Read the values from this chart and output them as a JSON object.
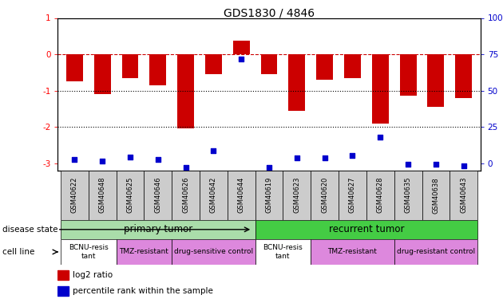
{
  "title": "GDS1830 / 4846",
  "samples": [
    "GSM40622",
    "GSM40648",
    "GSM40625",
    "GSM40646",
    "GSM40626",
    "GSM40642",
    "GSM40644",
    "GSM40619",
    "GSM40623",
    "GSM40620",
    "GSM40627",
    "GSM40628",
    "GSM40635",
    "GSM40638",
    "GSM40643"
  ],
  "log2_ratio": [
    -0.75,
    -1.1,
    -0.65,
    -0.85,
    -2.05,
    -0.55,
    0.38,
    -0.55,
    -1.55,
    -0.7,
    -0.65,
    -1.9,
    -1.15,
    -1.45,
    -1.2
  ],
  "percentile_rank": [
    7,
    6,
    9,
    7,
    2,
    13,
    73,
    2,
    8,
    8,
    10,
    22,
    4,
    4,
    3
  ],
  "bar_color": "#cc0000",
  "dot_color": "#0000cc",
  "dashed_line_color": "#cc0000",
  "dotted_line_color": "#000000",
  "ylim_left": [
    -3.2,
    1.0
  ],
  "left_yticks": [
    1,
    0,
    -1,
    -2,
    -3
  ],
  "right_yticks": [
    100,
    75,
    50,
    25,
    0
  ],
  "right_tick_positions": [
    1.0,
    0.0,
    -1.0,
    -2.0,
    -3.0
  ],
  "disease_state_groups": [
    {
      "label": "primary tumor",
      "start": 0,
      "end": 7,
      "color": "#aaddaa"
    },
    {
      "label": "recurrent tumor",
      "start": 7,
      "end": 15,
      "color": "#44cc44"
    }
  ],
  "cell_line_groups": [
    {
      "label": "BCNU-resis\ntant",
      "start": 0,
      "end": 2,
      "color": "#ffffff"
    },
    {
      "label": "TMZ-resistant",
      "start": 2,
      "end": 4,
      "color": "#dd88dd"
    },
    {
      "label": "drug-sensitive control",
      "start": 4,
      "end": 7,
      "color": "#dd88dd"
    },
    {
      "label": "BCNU-resis\ntant",
      "start": 7,
      "end": 9,
      "color": "#ffffff"
    },
    {
      "label": "TMZ-resistant",
      "start": 9,
      "end": 12,
      "color": "#dd88dd"
    },
    {
      "label": "drug-resistant control",
      "start": 12,
      "end": 15,
      "color": "#dd88dd"
    }
  ],
  "legend_items": [
    {
      "label": "log2 ratio",
      "color": "#cc0000"
    },
    {
      "label": "percentile rank within the sample",
      "color": "#0000cc"
    }
  ],
  "disease_label": "disease state",
  "cell_line_label": "cell line",
  "background_color": "#ffffff",
  "right_axis_color": "#0000cc"
}
